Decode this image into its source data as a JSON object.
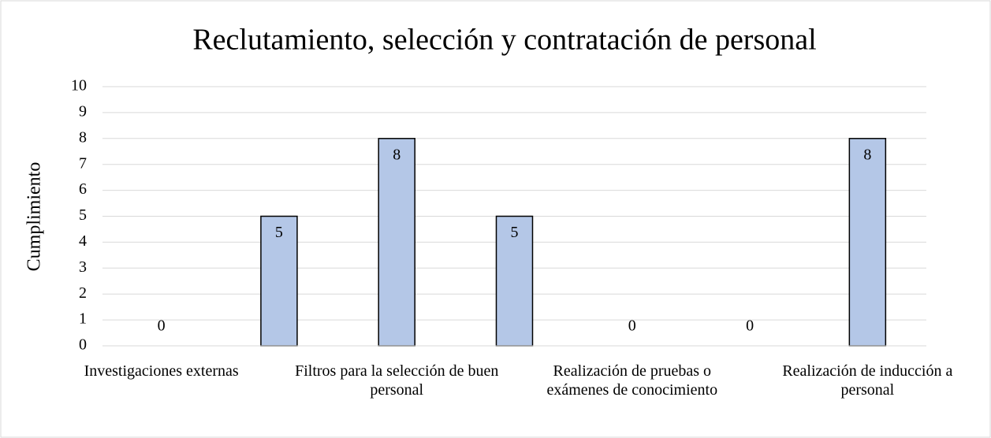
{
  "chart_data": {
    "type": "bar",
    "title": "Reclutamiento, selección y contratación de personal",
    "y_label": "Cumplimiento",
    "categories": [
      "Investigaciones externas",
      null,
      "Filtros para la selección de buen personal",
      null,
      "Realización de pruebas o exámenes de conocimiento",
      null,
      "Realización de inducción a personal"
    ],
    "values": [
      0,
      5,
      8,
      5,
      0,
      0,
      8
    ],
    "color": "#b4c7e7",
    "ylim": [
      0,
      10
    ],
    "yticks": [
      0,
      1,
      2,
      3,
      4,
      5,
      6,
      7,
      8,
      9,
      10
    ],
    "grid": true
  }
}
